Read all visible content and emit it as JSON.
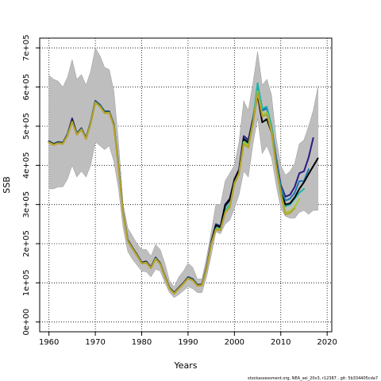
{
  "chart_data": {
    "type": "line",
    "xlabel": "Years",
    "ylabel": "SSB",
    "footnote": "stockassessment.org, NEA_sei_20v3, r12387 , git: 5b334405cda7",
    "xlim": [
      1958,
      2021
    ],
    "ylim": [
      -25000,
      725000
    ],
    "x_ticks": [
      1960,
      1970,
      1980,
      1990,
      2000,
      2010,
      2020
    ],
    "x_tick_labels": [
      "1960",
      "1970",
      "1980",
      "1990",
      "2000",
      "2010",
      "2020"
    ],
    "y_ticks": [
      0,
      100000,
      200000,
      300000,
      400000,
      500000,
      600000,
      700000
    ],
    "y_tick_labels": [
      "0e+00",
      "1e+05",
      "2e+05",
      "3e+05",
      "4e+05",
      "5e+05",
      "6e+05",
      "7e+05"
    ],
    "grid": true,
    "colors": {
      "band": "#bebebe",
      "band_edge": "#999999",
      "grid": "#000000"
    },
    "confidence_band": {
      "x": [
        1960,
        1961,
        1962,
        1963,
        1964,
        1965,
        1966,
        1967,
        1968,
        1969,
        1970,
        1971,
        1972,
        1973,
        1974,
        1975,
        1976,
        1977,
        1978,
        1979,
        1980,
        1981,
        1982,
        1983,
        1984,
        1985,
        1986,
        1987,
        1988,
        1989,
        1990,
        1991,
        1992,
        1993,
        1994,
        1995,
        1996,
        1997,
        1998,
        1999,
        2000,
        2001,
        2002,
        2003,
        2004,
        2005,
        2006,
        2007,
        2008,
        2009,
        2010,
        2011,
        2012,
        2013,
        2014,
        2015,
        2016,
        2017,
        2018
      ],
      "upper": [
        630000,
        620000,
        615000,
        600000,
        625000,
        670000,
        620000,
        632000,
        605000,
        640000,
        700000,
        680000,
        650000,
        645000,
        590000,
        460000,
        300000,
        240000,
        220000,
        200000,
        185000,
        185000,
        168000,
        198000,
        185000,
        150000,
        105000,
        90000,
        115000,
        130000,
        150000,
        140000,
        110000,
        110000,
        165000,
        230000,
        300000,
        300000,
        360000,
        380000,
        400000,
        460000,
        565000,
        540000,
        610000,
        690000,
        605000,
        620000,
        580000,
        470000,
        400000,
        375000,
        385000,
        405000,
        455000,
        465000,
        500000,
        540000,
        600000
      ],
      "lower": [
        340000,
        340000,
        345000,
        345000,
        365000,
        400000,
        370000,
        385000,
        370000,
        400000,
        460000,
        450000,
        440000,
        450000,
        410000,
        340000,
        240000,
        180000,
        160000,
        145000,
        130000,
        128000,
        115000,
        135000,
        130000,
        100000,
        75000,
        62000,
        70000,
        80000,
        90000,
        85000,
        75000,
        75000,
        115000,
        170000,
        230000,
        225000,
        250000,
        260000,
        290000,
        325000,
        385000,
        370000,
        455000,
        520000,
        430000,
        450000,
        420000,
        350000,
        290000,
        270000,
        265000,
        265000,
        280000,
        285000,
        275000,
        285000,
        285000
      ]
    },
    "series": [
      {
        "color": "#2e1a82",
        "x": [
          1960,
          1961,
          1962,
          1963,
          1964,
          1965,
          1966,
          1967,
          1968,
          1969,
          1970,
          1971,
          1972,
          1973,
          1974,
          1975,
          1976,
          1977,
          1978,
          1979,
          1980,
          1981,
          1982,
          1983,
          1984,
          1985,
          1986,
          1987,
          1988,
          1989,
          1990,
          1991,
          1992,
          1993,
          1994,
          1995,
          1996,
          1997,
          1998,
          1999,
          2000,
          2001,
          2002,
          2003,
          2004,
          2005,
          2006,
          2007,
          2008,
          2009,
          2010,
          2011,
          2012,
          2013,
          2014,
          2015,
          2016,
          2017
        ],
        "values": [
          462000,
          455000,
          460000,
          458000,
          480000,
          520000,
          482000,
          495000,
          470000,
          510000,
          565000,
          555000,
          538000,
          538000,
          505000,
          400000,
          280000,
          210000,
          190000,
          172000,
          152000,
          155000,
          140000,
          165000,
          150000,
          118000,
          88000,
          75000,
          88000,
          100000,
          115000,
          110000,
          95000,
          96000,
          140000,
          205000,
          250000,
          245000,
          300000,
          315000,
          365000,
          390000,
          475000,
          465000,
          520000,
          595000,
          545000,
          545000,
          500000,
          420000,
          350000,
          320000,
          325000,
          345000,
          380000,
          385000,
          420000,
          470000
        ]
      },
      {
        "color": "#1f78b4",
        "x": [
          1960,
          1961,
          1962,
          1963,
          1964,
          1965,
          1966,
          1967,
          1968,
          1969,
          1970,
          1971,
          1972,
          1973,
          1974,
          1975,
          1976,
          1977,
          1978,
          1979,
          1980,
          1981,
          1982,
          1983,
          1984,
          1985,
          1986,
          1987,
          1988,
          1989,
          1990,
          1991,
          1992,
          1993,
          1994,
          1995,
          1996,
          1997,
          1998,
          1999,
          2000,
          2001,
          2002,
          2003,
          2004,
          2005,
          2006,
          2007,
          2008,
          2009,
          2010,
          2011,
          2012,
          2013,
          2014,
          2015,
          2016
        ],
        "values": [
          461000,
          454000,
          459000,
          457000,
          479000,
          515000,
          481000,
          494000,
          469000,
          509000,
          564000,
          554000,
          537000,
          537000,
          504000,
          399000,
          279000,
          209000,
          189000,
          171000,
          151000,
          154000,
          139000,
          164000,
          149000,
          117000,
          87000,
          74000,
          87000,
          99000,
          114000,
          109000,
          94000,
          95000,
          139000,
          204000,
          248000,
          243000,
          295000,
          310000,
          360000,
          385000,
          468000,
          460000,
          515000,
          600000,
          540000,
          545000,
          495000,
          415000,
          345000,
          310000,
          315000,
          330000,
          360000,
          360000,
          390000
        ]
      },
      {
        "color": "#20b2aa",
        "x": [
          1960,
          1961,
          1962,
          1963,
          1964,
          1965,
          1966,
          1967,
          1968,
          1969,
          1970,
          1971,
          1972,
          1973,
          1974,
          1975,
          1976,
          1977,
          1978,
          1979,
          1980,
          1981,
          1982,
          1983,
          1984,
          1985,
          1986,
          1987,
          1988,
          1989,
          1990,
          1991,
          1992,
          1993,
          1994,
          1995,
          1996,
          1997,
          1998,
          1999,
          2000,
          2001,
          2002,
          2003,
          2004,
          2005,
          2006,
          2007,
          2008,
          2009,
          2010,
          2011,
          2012,
          2013,
          2014,
          2015
        ],
        "values": [
          460000,
          453000,
          458000,
          456000,
          478000,
          514000,
          480000,
          493000,
          468000,
          508000,
          563000,
          553000,
          536000,
          536000,
          503000,
          398000,
          278000,
          208000,
          188000,
          170000,
          150000,
          153000,
          138000,
          163000,
          148000,
          116000,
          86000,
          73000,
          86000,
          98000,
          113000,
          108000,
          93000,
          94000,
          137000,
          200000,
          240000,
          238000,
          285000,
          300000,
          360000,
          382000,
          465000,
          455000,
          515000,
          610000,
          545000,
          550000,
          500000,
          410000,
          335000,
          295000,
          300000,
          315000,
          330000,
          340000
        ]
      },
      {
        "color": "#000000",
        "x": [
          1960,
          1961,
          1962,
          1963,
          1964,
          1965,
          1966,
          1967,
          1968,
          1969,
          1970,
          1971,
          1972,
          1973,
          1974,
          1975,
          1976,
          1977,
          1978,
          1979,
          1980,
          1981,
          1982,
          1983,
          1984,
          1985,
          1986,
          1987,
          1988,
          1989,
          1990,
          1991,
          1992,
          1993,
          1994,
          1995,
          1996,
          1997,
          1998,
          1999,
          2000,
          2001,
          2002,
          2003,
          2004,
          2005,
          2006,
          2007,
          2008,
          2009,
          2010,
          2011,
          2012,
          2013,
          2014,
          2015,
          2016,
          2017,
          2018
        ],
        "values": [
          460000,
          454000,
          458000,
          457000,
          478000,
          515000,
          480000,
          493000,
          469000,
          508000,
          562000,
          552000,
          535000,
          536000,
          502000,
          397000,
          278000,
          208000,
          189000,
          171000,
          151000,
          153000,
          139000,
          163000,
          149000,
          117000,
          87000,
          74000,
          87000,
          99000,
          113000,
          108000,
          94000,
          95000,
          138000,
          203000,
          247000,
          242000,
          298000,
          312000,
          362000,
          387000,
          468000,
          458000,
          515000,
          580000,
          510000,
          518000,
          485000,
          405000,
          330000,
          300000,
          303000,
          318000,
          340000,
          357000,
          378000,
          398000,
          418000
        ]
      },
      {
        "color": "#9acd32",
        "x": [
          1960,
          1961,
          1962,
          1963,
          1964,
          1965,
          1966,
          1967,
          1968,
          1969,
          1970,
          1971,
          1972,
          1973,
          1974,
          1975,
          1976,
          1977,
          1978,
          1979,
          1980,
          1981,
          1982,
          1983,
          1984,
          1985,
          1986,
          1987,
          1988,
          1989,
          1990,
          1991,
          1992,
          1993,
          1994,
          1995,
          1996,
          1997,
          1998,
          1999,
          2000,
          2001,
          2002,
          2003,
          2004,
          2005,
          2006,
          2007,
          2008,
          2009,
          2010,
          2011,
          2012,
          2013,
          2014
        ],
        "values": [
          459000,
          453000,
          457000,
          456000,
          477000,
          512000,
          479000,
          492000,
          468000,
          507000,
          561000,
          551000,
          534000,
          535000,
          501000,
          396000,
          277000,
          207000,
          188000,
          170000,
          150000,
          152000,
          138000,
          162000,
          148000,
          116000,
          86000,
          73000,
          86000,
          98000,
          112000,
          107000,
          93000,
          94000,
          136000,
          200000,
          238000,
          236000,
          280000,
          295000,
          355000,
          380000,
          460000,
          450000,
          510000,
          590000,
          530000,
          535000,
          490000,
          400000,
          330000,
          280000,
          283000,
          293000,
          315000
        ]
      },
      {
        "color": "#b8a02c",
        "x": [
          1960,
          1961,
          1962,
          1963,
          1964,
          1965,
          1966,
          1967,
          1968,
          1969,
          1970,
          1971,
          1972,
          1973,
          1974,
          1975,
          1976,
          1977,
          1978,
          1979,
          1980,
          1981,
          1982,
          1983,
          1984,
          1985,
          1986,
          1987,
          1988,
          1989,
          1990,
          1991,
          1992,
          1993,
          1994,
          1995,
          1996,
          1997,
          1998,
          1999,
          2000,
          2001,
          2002,
          2003,
          2004,
          2005,
          2006,
          2007,
          2008,
          2009,
          2010,
          2011,
          2012,
          2013
        ],
        "values": [
          458000,
          452000,
          456000,
          455000,
          476000,
          511000,
          478000,
          491000,
          467000,
          506000,
          560000,
          550000,
          533000,
          534000,
          500000,
          395000,
          276000,
          206000,
          187000,
          169000,
          149000,
          151000,
          137000,
          161000,
          147000,
          115000,
          85000,
          72000,
          85000,
          97000,
          111000,
          106000,
          92000,
          93000,
          135000,
          198000,
          236000,
          234000,
          278000,
          292000,
          352000,
          378000,
          455000,
          445000,
          505000,
          585000,
          525000,
          530000,
          485000,
          395000,
          325000,
          275000,
          278000,
          290000
        ]
      }
    ]
  }
}
